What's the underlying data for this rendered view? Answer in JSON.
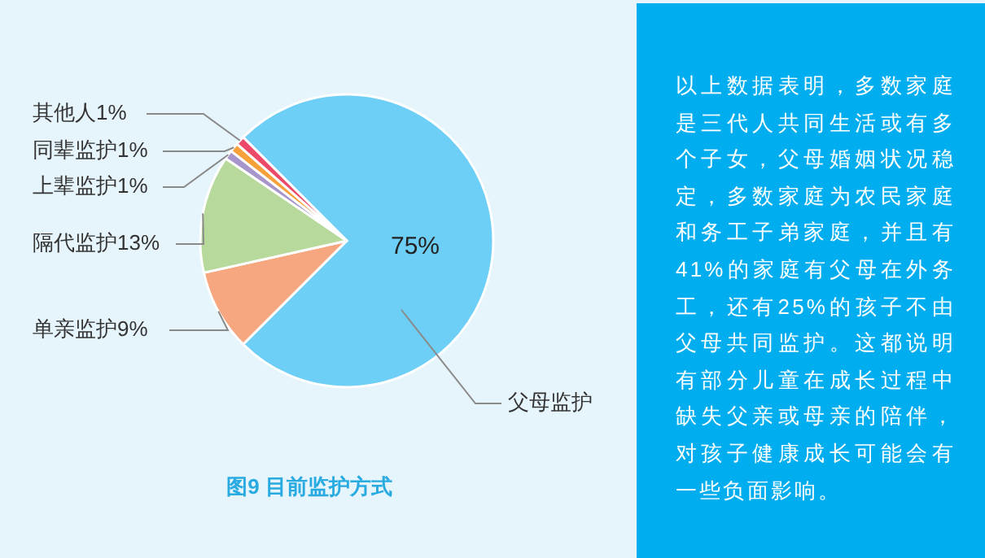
{
  "chart_data": {
    "type": "pie",
    "title": "图9 目前监护方式",
    "categories": [
      "父母监护",
      "单亲监护9%",
      "隔代监护13%",
      "上辈监护1%",
      "同辈监护1%",
      "其他人1%"
    ],
    "values": [
      75,
      9,
      13,
      1,
      1,
      1
    ],
    "colors": [
      "#6dcff6",
      "#f7a77f",
      "#b7d99b",
      "#a696cc",
      "#f7a13a",
      "#ec4a6a"
    ],
    "value_labels": [
      "75%",
      null,
      null,
      null,
      null,
      null
    ],
    "legend": false,
    "annotations": [
      "以上数据表明，多数家庭是三代人共同生活或有多个子女，父母婚姻状况稳定，多数家庭为农民家庭和务工子弟家庭，并且有41%的家庭有父母在外务工，还有25%的孩子不由父母共同监护。这都说明有部分儿童在成长过程中缺失父亲或母亲的陪伴，对孩子健康成长可能会有一些负面影响。"
    ]
  }
}
